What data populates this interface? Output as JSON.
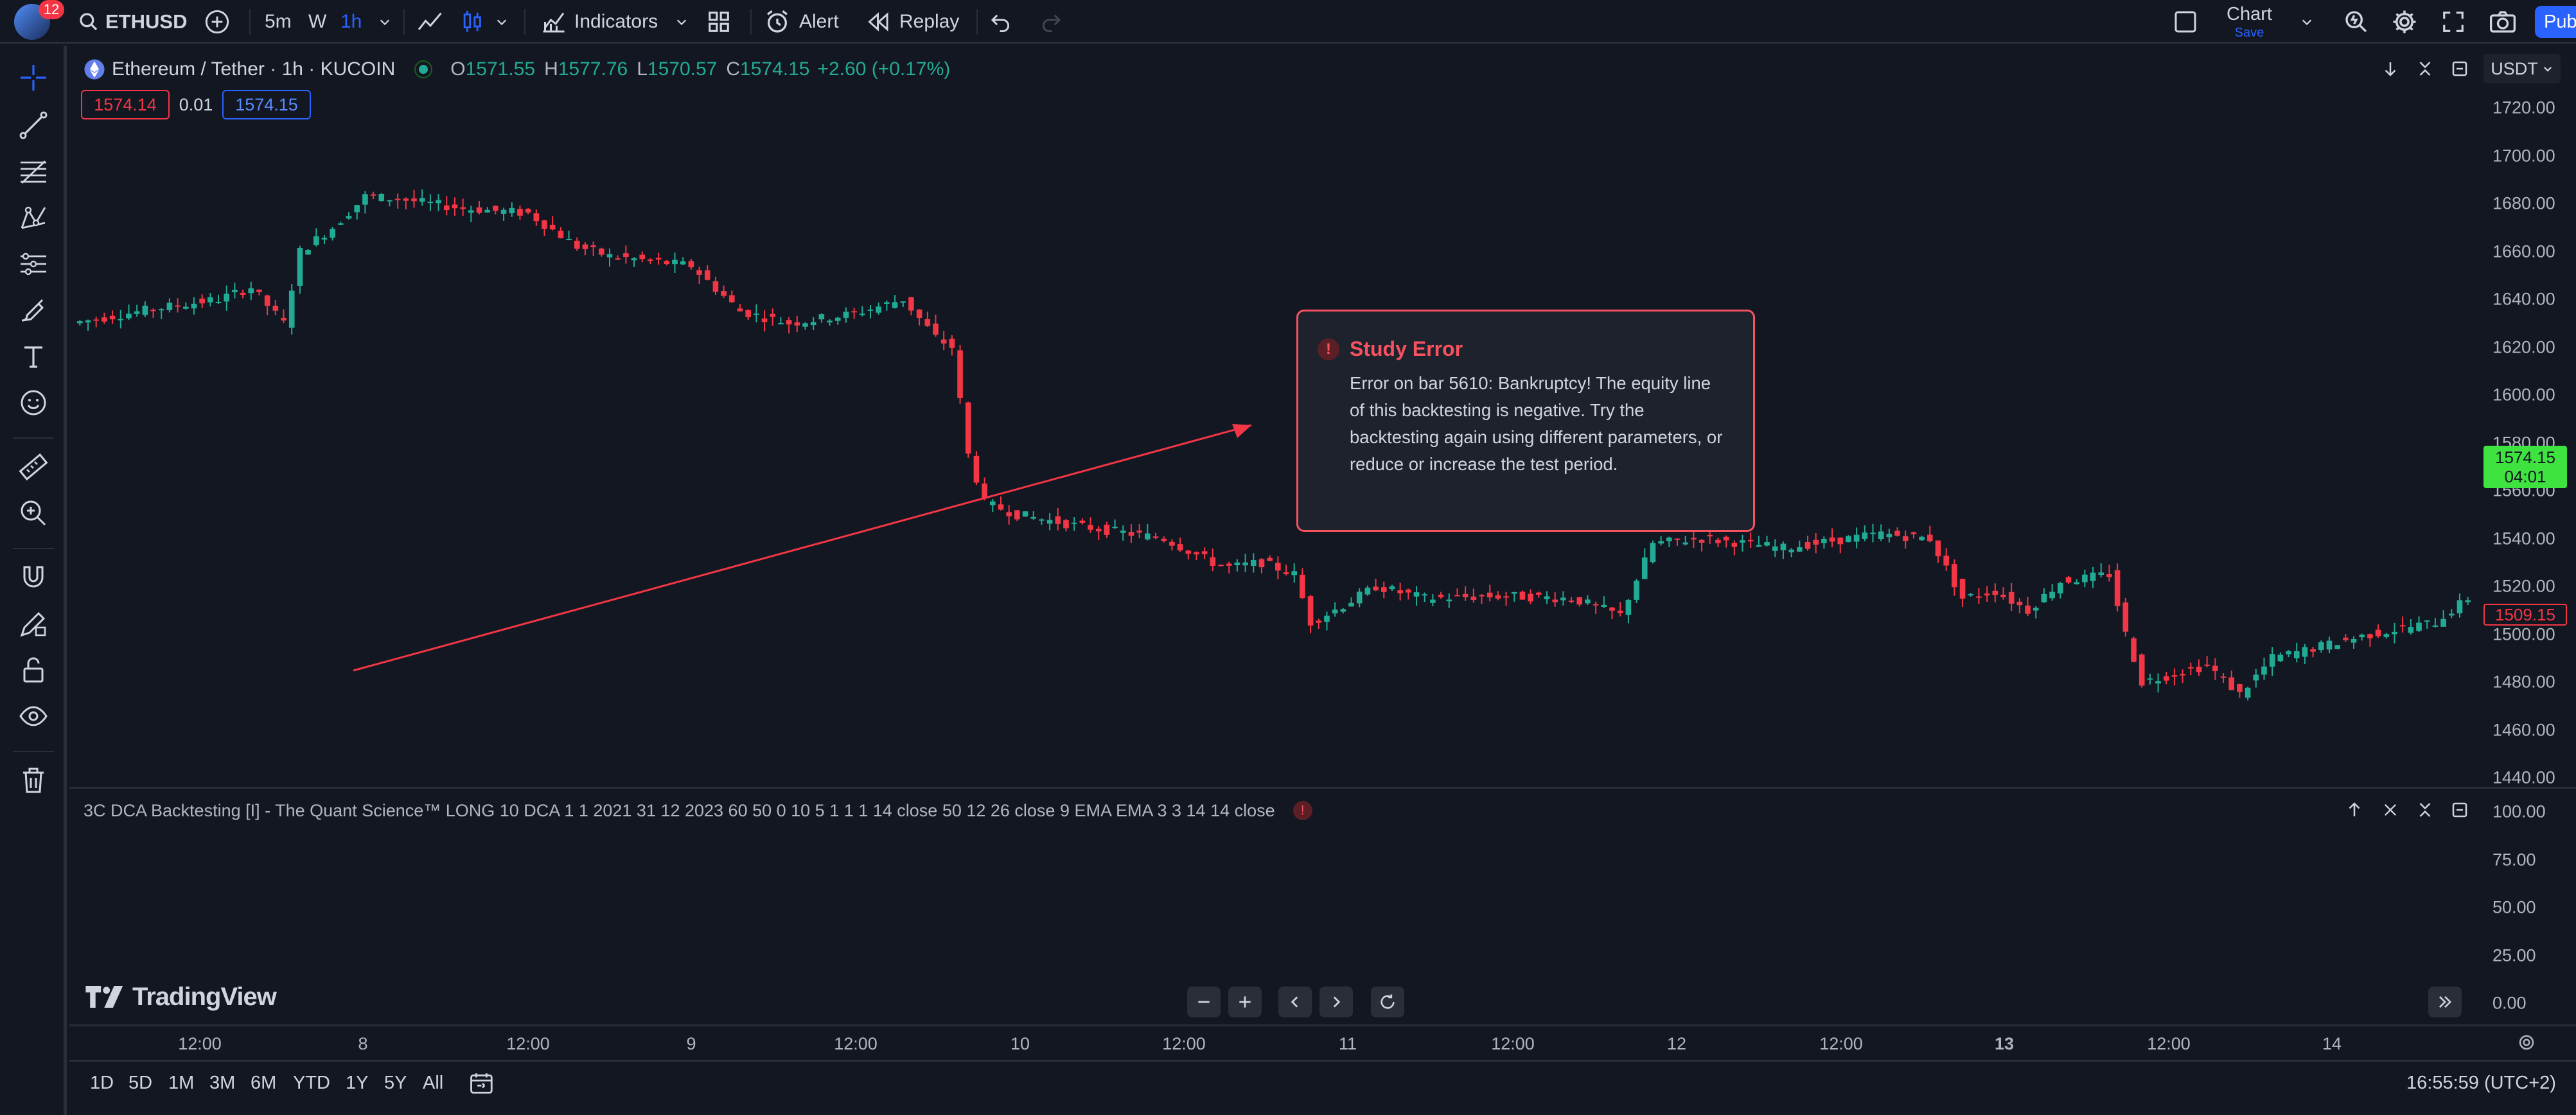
{
  "toolbar": {
    "notifications_count": "12",
    "symbol": "ETHUSD",
    "intervals": [
      "5m",
      "W",
      "1h"
    ],
    "active_interval": "1h",
    "indicators_label": "Indicators",
    "alert_label": "Alert",
    "replay_label": "Replay",
    "chart_label": "Chart",
    "save_label": "Save",
    "publish_label": "Pub"
  },
  "legend": {
    "title": "Ethereum / Tether · 1h · KUCOIN",
    "open_label": "O",
    "open": "1571.55",
    "high_label": "H",
    "high": "1577.76",
    "low_label": "L",
    "low": "1570.57",
    "close_label": "C",
    "close": "1574.15",
    "change": "+2.60 (+0.17%)",
    "bid": "1574.14",
    "spread": "0.01",
    "ask": "1574.15",
    "currency": "USDT"
  },
  "price_scale": {
    "ticks": [
      "1720.00",
      "1700.00",
      "1680.00",
      "1660.00",
      "1640.00",
      "1620.00",
      "1600.00",
      "1580.00",
      "1560.00",
      "1540.00",
      "1520.00",
      "1500.00",
      "1480.00",
      "1460.00",
      "1440.00"
    ],
    "last_price": "1574.15",
    "countdown": "04:01",
    "marker_price": "1509.15"
  },
  "indicator_pane": {
    "legend": "3C DCA Backtesting [I] - The Quant Science™ LONG 10 DCA 1 1 2021 31 12 2023 60 50 0 10 5 1 1 1 14 close 50 12 26 close 9 EMA EMA 3 3 14 14 close",
    "ticks": [
      "100.00",
      "75.00",
      "50.00",
      "25.00",
      "0.00"
    ]
  },
  "study_error": {
    "title": "Study Error",
    "message": "Error on bar 5610: Bankruptcy! The equity line of this backtesting is negative. Try the backtesting again using different parameters, or reduce or increase the test period."
  },
  "branding": {
    "logo_text": "TradingView"
  },
  "time_axis": {
    "labels": [
      "12:00",
      "8",
      "12:00",
      "9",
      "12:00",
      "10",
      "12:00",
      "11",
      "12:00",
      "12",
      "12:00",
      "13",
      "12:00",
      "14"
    ]
  },
  "ranges": [
    "1D",
    "5D",
    "1M",
    "3M",
    "6M",
    "YTD",
    "1Y",
    "5Y",
    "All"
  ],
  "clock": "16:55:59 (UTC+2)",
  "colors": {
    "up": "#22ab94",
    "down": "#f23645",
    "accent": "#2962ff",
    "error": "#f7525f",
    "last_price_bg": "#3fe33f"
  }
}
